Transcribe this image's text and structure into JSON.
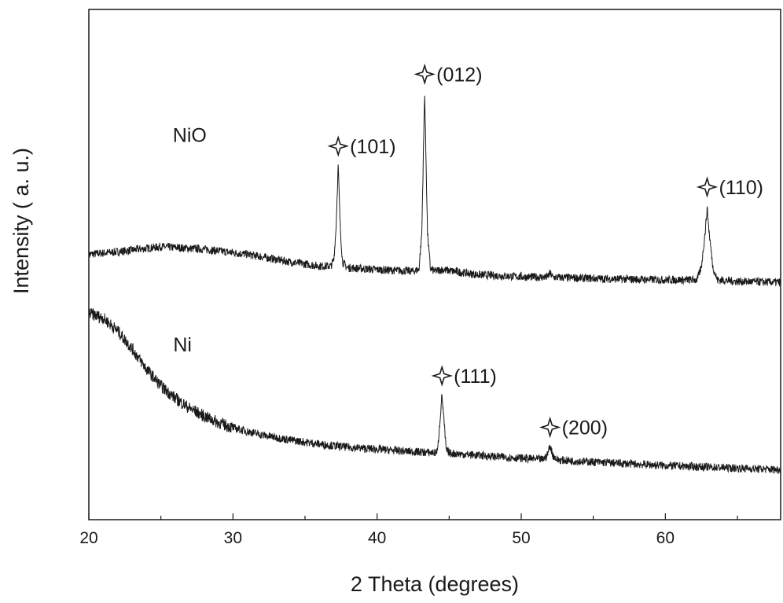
{
  "chart_data": {
    "type": "line",
    "title": "",
    "xlabel": "2 Theta (degrees)",
    "ylabel": "Intensity ( a. u.)",
    "xlim": [
      20,
      68
    ],
    "ylim": [
      0,
      1
    ],
    "x_ticks": [
      20,
      30,
      40,
      50,
      60
    ],
    "y_ticks_shown": false,
    "grid": false,
    "legend": "none",
    "colors": {
      "line": "#1a1a1a",
      "axis": "#1a1a1a"
    },
    "marker_icon": "four-point-star-icon",
    "series": [
      {
        "name": "NiO",
        "label_at": [
          27,
          0.74
        ],
        "points": [
          [
            20,
            0.52
          ],
          [
            22,
            0.525
          ],
          [
            25,
            0.535
          ],
          [
            28,
            0.53
          ],
          [
            31,
            0.52
          ],
          [
            34,
            0.505
          ],
          [
            36,
            0.497
          ],
          [
            36.8,
            0.497
          ],
          [
            37.0,
            0.51
          ],
          [
            37.15,
            0.57
          ],
          [
            37.3,
            0.695
          ],
          [
            37.45,
            0.57
          ],
          [
            37.6,
            0.505
          ],
          [
            37.9,
            0.494
          ],
          [
            40,
            0.49
          ],
          [
            42.5,
            0.487
          ],
          [
            42.9,
            0.49
          ],
          [
            43.1,
            0.56
          ],
          [
            43.3,
            0.838
          ],
          [
            43.5,
            0.56
          ],
          [
            43.7,
            0.492
          ],
          [
            44,
            0.487
          ],
          [
            44.5,
            0.49
          ],
          [
            47,
            0.48
          ],
          [
            50,
            0.476
          ],
          [
            51.8,
            0.475
          ],
          [
            52.0,
            0.483
          ],
          [
            52.2,
            0.475
          ],
          [
            56,
            0.472
          ],
          [
            60,
            0.47
          ],
          [
            62.2,
            0.47
          ],
          [
            62.5,
            0.495
          ],
          [
            62.75,
            0.56
          ],
          [
            62.9,
            0.61
          ],
          [
            63.05,
            0.56
          ],
          [
            63.3,
            0.495
          ],
          [
            63.6,
            0.47
          ],
          [
            65,
            0.467
          ],
          [
            68,
            0.465
          ]
        ]
      },
      {
        "name": "Ni",
        "label_at": [
          26.5,
          0.33
        ],
        "points": [
          [
            20,
            0.405
          ],
          [
            21,
            0.395
          ],
          [
            22,
            0.37
          ],
          [
            23,
            0.335
          ],
          [
            24,
            0.295
          ],
          [
            25,
            0.262
          ],
          [
            26,
            0.238
          ],
          [
            27,
            0.218
          ],
          [
            28,
            0.203
          ],
          [
            29,
            0.19
          ],
          [
            30,
            0.18
          ],
          [
            32,
            0.166
          ],
          [
            34,
            0.156
          ],
          [
            36,
            0.148
          ],
          [
            38,
            0.142
          ],
          [
            40,
            0.138
          ],
          [
            42,
            0.134
          ],
          [
            44,
            0.131
          ],
          [
            44.2,
            0.135
          ],
          [
            44.35,
            0.19
          ],
          [
            44.5,
            0.245
          ],
          [
            44.65,
            0.19
          ],
          [
            44.8,
            0.135
          ],
          [
            45.1,
            0.13
          ],
          [
            48,
            0.124
          ],
          [
            51.5,
            0.118
          ],
          [
            51.8,
            0.126
          ],
          [
            52.0,
            0.145
          ],
          [
            52.2,
            0.126
          ],
          [
            52.5,
            0.117
          ],
          [
            55,
            0.113
          ],
          [
            60,
            0.106
          ],
          [
            64,
            0.102
          ],
          [
            68,
            0.098
          ]
        ]
      }
    ],
    "annotations": [
      {
        "text": "(101)",
        "x": 37.3,
        "y": 0.732
      },
      {
        "text": "(012)",
        "x": 43.3,
        "y": 0.873
      },
      {
        "text": "(110)",
        "x": 62.9,
        "y": 0.652
      },
      {
        "text": "(111)",
        "x": 44.5,
        "y": 0.282
      },
      {
        "text": "(200)",
        "x": 52.0,
        "y": 0.181
      }
    ]
  }
}
